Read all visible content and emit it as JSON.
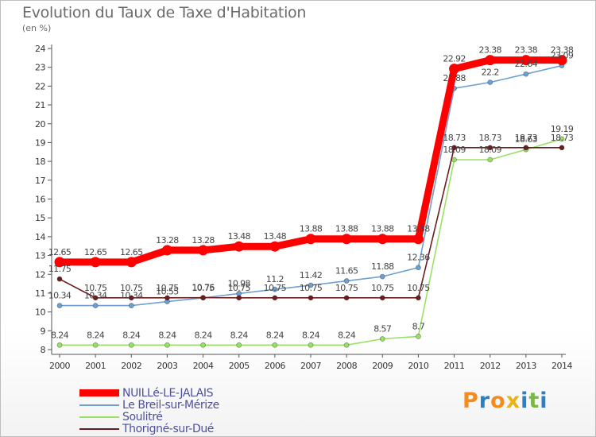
{
  "title": "Evolution du Taux de Taxe d'Habitation",
  "subtitle": "(en %)",
  "logo": [
    "P",
    "r",
    "o",
    "x",
    "i",
    "t",
    "i"
  ],
  "chart_data": {
    "type": "line",
    "title": "Evolution du Taux de Taxe d'Habitation",
    "ylabel": "(en %)",
    "xlabel": "",
    "ylim": [
      8,
      24
    ],
    "yticks": [
      8,
      9,
      10,
      11,
      12,
      13,
      14,
      15,
      16,
      17,
      18,
      19,
      20,
      21,
      22,
      23,
      24
    ],
    "grid": false,
    "legend_placement": "bottom-left",
    "x": [
      2000,
      2001,
      2002,
      2003,
      2004,
      2005,
      2006,
      2007,
      2008,
      2009,
      2010,
      2011,
      2012,
      2013,
      2014
    ],
    "series": [
      {
        "name": "NUILLé-LE-JALAIS",
        "color": "#ff0000",
        "values": [
          12.65,
          12.65,
          12.65,
          13.28,
          13.28,
          13.48,
          13.48,
          13.88,
          13.88,
          13.88,
          13.88,
          22.92,
          23.38,
          23.38,
          23.38
        ]
      },
      {
        "name": "Le Breil-sur-Mérize",
        "color": "#6fa0d0",
        "values": [
          10.34,
          10.34,
          10.34,
          10.55,
          10.75,
          10.98,
          11.2,
          11.42,
          11.65,
          11.88,
          12.36,
          21.88,
          22.2,
          22.64,
          23.09
        ]
      },
      {
        "name": "Soulitré",
        "color": "#99e165",
        "values": [
          8.24,
          8.24,
          8.24,
          8.24,
          8.24,
          8.24,
          8.24,
          8.24,
          8.24,
          8.57,
          8.7,
          18.09,
          18.09,
          18.63,
          19.19
        ]
      },
      {
        "name": "Thorigné-sur-Dué",
        "color": "#6b1c20",
        "values": [
          11.75,
          10.75,
          10.75,
          10.75,
          10.76,
          10.75,
          10.75,
          10.75,
          10.75,
          10.75,
          10.75,
          18.73,
          18.73,
          18.73,
          18.73
        ]
      }
    ]
  }
}
